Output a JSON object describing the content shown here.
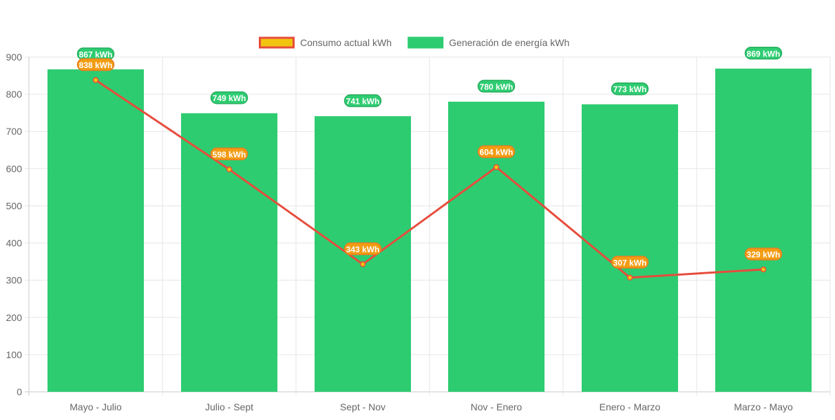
{
  "chart_data": {
    "type": "bar",
    "categories": [
      "Mayo - Julio",
      "Julio - Sept",
      "Sept - Nov",
      "Nov - Enero",
      "Enero - Marzo",
      "Marzo - Mayo"
    ],
    "series": [
      {
        "name": "Generación de energía kWh",
        "type": "bar",
        "values": [
          867,
          749,
          741,
          780,
          773,
          869
        ],
        "labels": [
          "867 kWh",
          "749 kWh",
          "741 kWh",
          "780 kWh",
          "773 kWh",
          "869 kWh"
        ],
        "color": "#2ecc71",
        "label_border_color": "#27ae60"
      },
      {
        "name": "Consumo actual kWh",
        "type": "line",
        "values": [
          838,
          598,
          343,
          604,
          307,
          329
        ],
        "labels": [
          "838 kWh",
          "598 kWh",
          "343 kWh",
          "604 kWh",
          "307 kWh",
          "329 kWh"
        ],
        "color": "#e74c3c",
        "fill_color": "#f1c40f",
        "label_color": "#f39c12",
        "label_border_color": "#e67e22"
      }
    ],
    "y_ticks": [
      "0",
      "100",
      "200",
      "300",
      "400",
      "500",
      "600",
      "700",
      "800",
      "900"
    ],
    "ylim": [
      0,
      900
    ],
    "grid": true,
    "legend_position": "top-center"
  }
}
